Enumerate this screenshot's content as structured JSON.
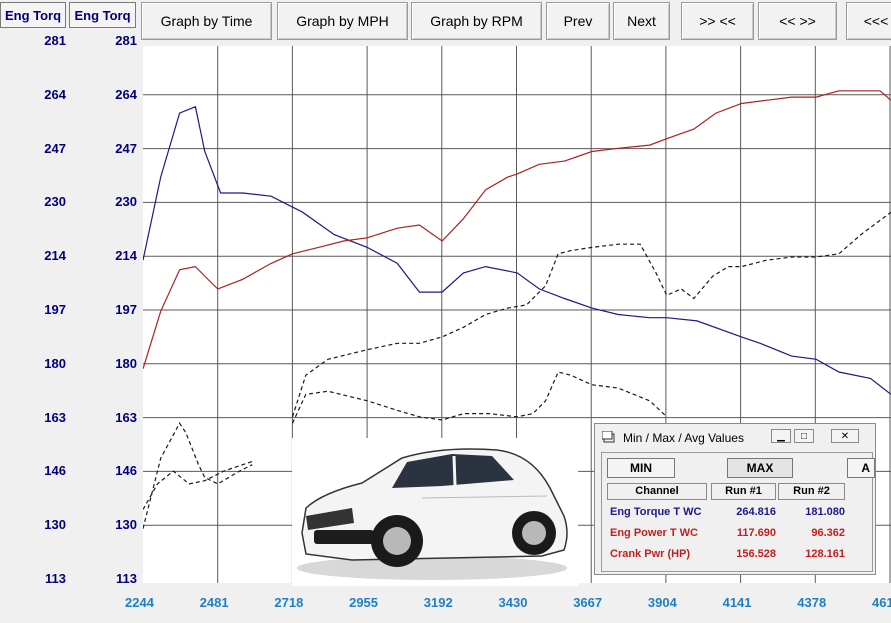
{
  "y_headers": [
    "Eng Torq",
    "Eng Torq"
  ],
  "y_ticks": [
    "281",
    "264",
    "247",
    "230",
    "214",
    "197",
    "180",
    "163",
    "146",
    "130",
    "113"
  ],
  "toolbar": {
    "buttons": [
      "Graph by Time",
      "Graph by MPH",
      "Graph by RPM",
      "Prev",
      "Next",
      ">> <<",
      "<< >>",
      "<<<"
    ]
  },
  "chart_data": {
    "type": "line",
    "x_ticks": [
      "2244",
      "2481",
      "2718",
      "2955",
      "3192",
      "3430",
      "3667",
      "3904",
      "4141",
      "4378",
      "461"
    ],
    "xlim": [
      2244,
      4615
    ],
    "ylim": [
      113,
      281
    ],
    "grid": true,
    "series": [
      {
        "color": "#1a1a8a",
        "style": "solid",
        "points": [
          [
            2244,
            214
          ],
          [
            2300,
            240
          ],
          [
            2360,
            260
          ],
          [
            2410,
            262
          ],
          [
            2440,
            248
          ],
          [
            2490,
            235
          ],
          [
            2560,
            235
          ],
          [
            2650,
            234
          ],
          [
            2750,
            229
          ],
          [
            2850,
            222
          ],
          [
            2955,
            218
          ],
          [
            3050,
            213
          ],
          [
            3120,
            204
          ],
          [
            3192,
            204
          ],
          [
            3260,
            210
          ],
          [
            3330,
            212
          ],
          [
            3430,
            210
          ],
          [
            3500,
            205
          ],
          [
            3580,
            202
          ],
          [
            3667,
            199
          ],
          [
            3750,
            197
          ],
          [
            3850,
            196
          ],
          [
            3904,
            196
          ],
          [
            4000,
            195
          ],
          [
            4141,
            190
          ],
          [
            4200,
            188
          ],
          [
            4300,
            184
          ],
          [
            4378,
            183
          ],
          [
            4450,
            179
          ],
          [
            4550,
            177
          ],
          [
            4615,
            172
          ]
        ]
      },
      {
        "color": "#b02020",
        "style": "solid",
        "points": [
          [
            2244,
            180
          ],
          [
            2300,
            198
          ],
          [
            2360,
            211
          ],
          [
            2410,
            212
          ],
          [
            2460,
            207
          ],
          [
            2481,
            205
          ],
          [
            2560,
            208
          ],
          [
            2650,
            213
          ],
          [
            2718,
            216
          ],
          [
            2800,
            218
          ],
          [
            2880,
            220
          ],
          [
            2955,
            221
          ],
          [
            3050,
            224
          ],
          [
            3120,
            225
          ],
          [
            3192,
            220
          ],
          [
            3260,
            227
          ],
          [
            3330,
            236
          ],
          [
            3400,
            240
          ],
          [
            3430,
            241
          ],
          [
            3500,
            244
          ],
          [
            3580,
            245
          ],
          [
            3667,
            248
          ],
          [
            3750,
            249
          ],
          [
            3850,
            250
          ],
          [
            3904,
            252
          ],
          [
            3990,
            255
          ],
          [
            4060,
            260
          ],
          [
            4141,
            263
          ],
          [
            4220,
            264
          ],
          [
            4300,
            265
          ],
          [
            4378,
            265
          ],
          [
            4450,
            267
          ],
          [
            4520,
            267
          ],
          [
            4580,
            267
          ],
          [
            4615,
            264
          ]
        ]
      },
      {
        "color": "#1a1a1a",
        "style": "dashed",
        "points": [
          [
            2244,
            130
          ],
          [
            2300,
            152
          ],
          [
            2360,
            163
          ],
          [
            2380,
            160
          ],
          [
            2420,
            150
          ],
          [
            2440,
            146
          ],
          [
            2481,
            144
          ],
          [
            2550,
            148
          ],
          [
            2590,
            150
          ]
        ]
      },
      {
        "color": "#1a1a1a",
        "style": "dashed",
        "points": [
          [
            2244,
            136
          ],
          [
            2290,
            144
          ],
          [
            2340,
            148
          ],
          [
            2390,
            144
          ],
          [
            2440,
            145
          ],
          [
            2500,
            148
          ],
          [
            2590,
            151
          ]
        ]
      },
      {
        "color": "#1a1a1a",
        "style": "dashed",
        "points": [
          [
            2718,
            163
          ],
          [
            2760,
            172
          ],
          [
            2830,
            173
          ],
          [
            2955,
            170
          ],
          [
            3050,
            167
          ],
          [
            3120,
            165
          ],
          [
            3192,
            164
          ],
          [
            3260,
            166
          ],
          [
            3340,
            166
          ],
          [
            3430,
            165
          ],
          [
            3480,
            166
          ],
          [
            3520,
            170
          ],
          [
            3560,
            179
          ],
          [
            3600,
            178
          ],
          [
            3667,
            175
          ],
          [
            3750,
            174
          ],
          [
            3850,
            170
          ],
          [
            3904,
            165
          ]
        ]
      },
      {
        "color": "#1a1a1a",
        "style": "dashed",
        "points": [
          [
            2718,
            165
          ],
          [
            2760,
            178
          ],
          [
            2830,
            183
          ],
          [
            2955,
            186
          ],
          [
            3050,
            188
          ],
          [
            3120,
            188
          ],
          [
            3192,
            190
          ],
          [
            3260,
            193
          ],
          [
            3330,
            197
          ],
          [
            3400,
            199
          ],
          [
            3460,
            200
          ],
          [
            3520,
            206
          ],
          [
            3560,
            216
          ],
          [
            3600,
            217
          ],
          [
            3667,
            218
          ],
          [
            3750,
            219
          ],
          [
            3820,
            219
          ],
          [
            3870,
            210
          ],
          [
            3904,
            203
          ],
          [
            3950,
            205
          ],
          [
            3990,
            202
          ],
          [
            4050,
            209
          ],
          [
            4100,
            212
          ],
          [
            4141,
            212
          ],
          [
            4220,
            214
          ],
          [
            4300,
            215
          ],
          [
            4378,
            215
          ],
          [
            4450,
            216
          ],
          [
            4520,
            222
          ],
          [
            4615,
            229
          ]
        ]
      }
    ]
  },
  "panel": {
    "title": "Min / Max / Avg Values",
    "min_label": "MIN",
    "max_label": "MAX",
    "next_label": "A",
    "col_channel": "Channel",
    "col_run1": "Run #1",
    "col_run2": "Run #2",
    "rows": [
      {
        "name": "Eng Torque T WC",
        "run1": "264.816",
        "run2": "181.080",
        "color": "#1a1a8a"
      },
      {
        "name": "Eng Power T WC",
        "run1": "117.690",
        "run2": "96.362",
        "color": "#c02020"
      },
      {
        "name": "Crank Pwr (HP)",
        "run1": "156.528",
        "run2": "128.161",
        "color": "#c02020"
      }
    ]
  }
}
